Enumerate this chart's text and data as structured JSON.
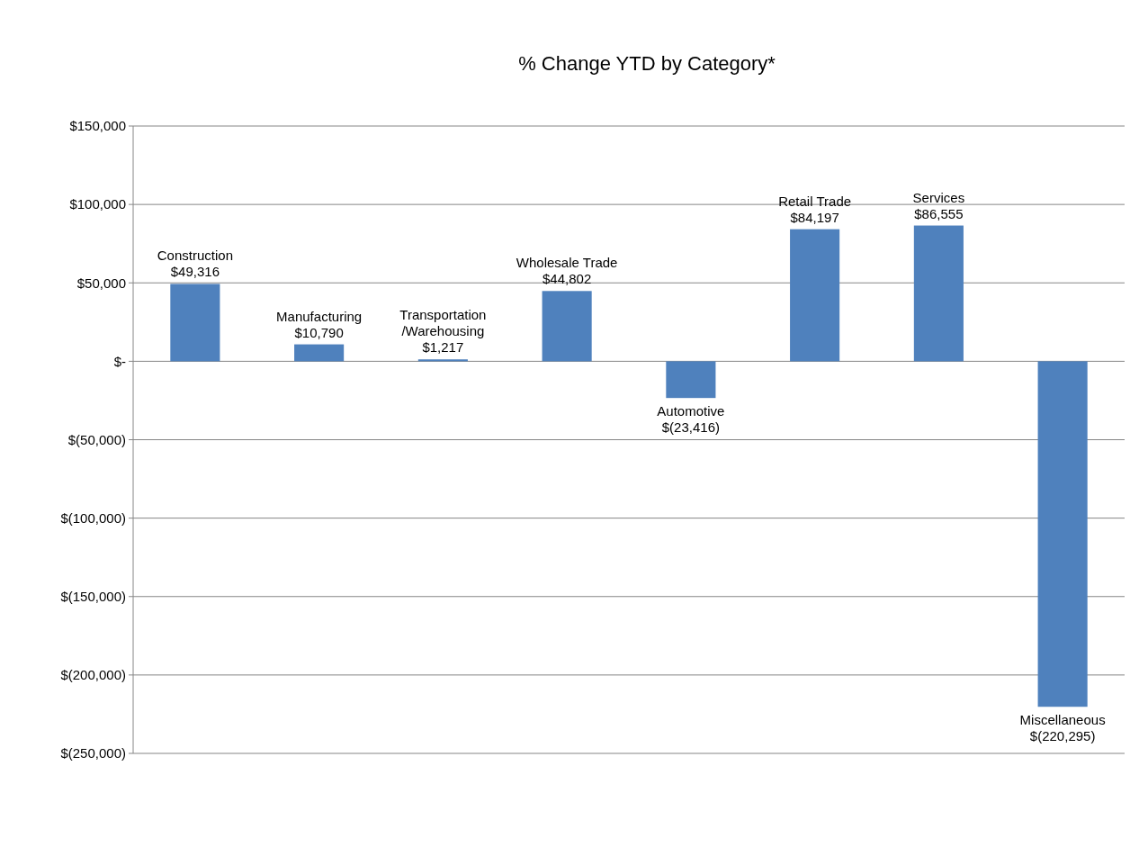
{
  "chart_data": {
    "type": "bar",
    "title": "% Change YTD by Category*",
    "categories": [
      "Construction",
      "Manufacturing",
      "Transportation /Warehousing",
      "Wholesale Trade",
      "Automotive",
      "Retail Trade",
      "Services",
      "Miscellaneous"
    ],
    "values": [
      49316,
      10790,
      1217,
      44802,
      -23416,
      84197,
      86555,
      -220295
    ],
    "value_labels": [
      "$49,316",
      "$10,790",
      "$1,217",
      "$44,802",
      "$(23,416)",
      "$84,197",
      "$86,555",
      "$(220,295)"
    ],
    "color": "#4f81bd",
    "ylim": [
      -250000,
      150000
    ],
    "yticks": [
      {
        "value": -250000,
        "label": "$(250,000)"
      },
      {
        "value": -200000,
        "label": "$(200,000)"
      },
      {
        "value": -150000,
        "label": "$(150,000)"
      },
      {
        "value": -100000,
        "label": "$(100,000)"
      },
      {
        "value": -50000,
        "label": "$(50,000)"
      },
      {
        "value": 0,
        "label": "$-"
      },
      {
        "value": 50000,
        "label": "$50,000"
      },
      {
        "value": 100000,
        "label": "$100,000"
      },
      {
        "value": 150000,
        "label": "$150,000"
      }
    ],
    "grid": "y"
  }
}
